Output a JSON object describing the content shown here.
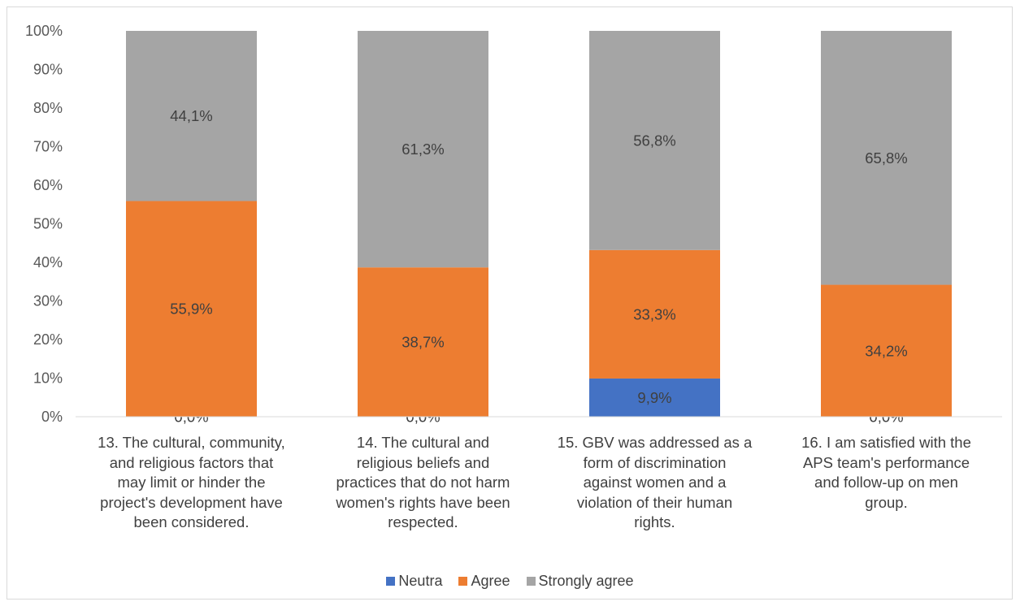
{
  "chart_data": {
    "type": "bar",
    "stacked": true,
    "title": "",
    "xlabel": "",
    "ylabel": "",
    "ylim": [
      0,
      100
    ],
    "yticks": [
      "0%",
      "10%",
      "20%",
      "30%",
      "40%",
      "50%",
      "60%",
      "70%",
      "80%",
      "90%",
      "100%"
    ],
    "grid": false,
    "legend_position": "bottom",
    "categories": [
      "13. The cultural, community, and religious factors that may limit or hinder the project's development have been considered.",
      "14. The cultural and religious beliefs and practices that do not harm women's rights have been respected.",
      "15. GBV was addressed as a form of discrimination against women and a violation of their human rights.",
      "16. I am satisfied with the APS team's performance and follow-up on men group."
    ],
    "category_lines": [
      [
        "13. The cultural, community,",
        "and religious factors that",
        "may limit or hinder the",
        "project's development have",
        "been considered."
      ],
      [
        "14. The cultural and",
        "religious beliefs and",
        "practices that do not harm",
        "women's rights have been",
        "respected."
      ],
      [
        "15. GBV was addressed as a",
        "form of discrimination",
        "against women and a",
        "violation of their human",
        "rights."
      ],
      [
        "16. I am satisfied with the",
        "APS team's performance",
        "and follow-up on men",
        "group."
      ]
    ],
    "series": [
      {
        "name": "Neutra",
        "color": "#4472c4",
        "values": [
          0.0,
          0.0,
          9.9,
          0.0
        ],
        "labels": [
          "0,0%",
          "0,0%",
          "9,9%",
          "0,0%"
        ]
      },
      {
        "name": "Agree",
        "color": "#ed7d31",
        "values": [
          55.9,
          38.7,
          33.3,
          34.2
        ],
        "labels": [
          "55,9%",
          "38,7%",
          "33,3%",
          "34,2%"
        ]
      },
      {
        "name": "Strongly agree",
        "color": "#a5a5a5",
        "values": [
          44.1,
          61.3,
          56.8,
          65.8
        ],
        "labels": [
          "44,1%",
          "61,3%",
          "56,8%",
          "65,8%"
        ]
      }
    ]
  }
}
